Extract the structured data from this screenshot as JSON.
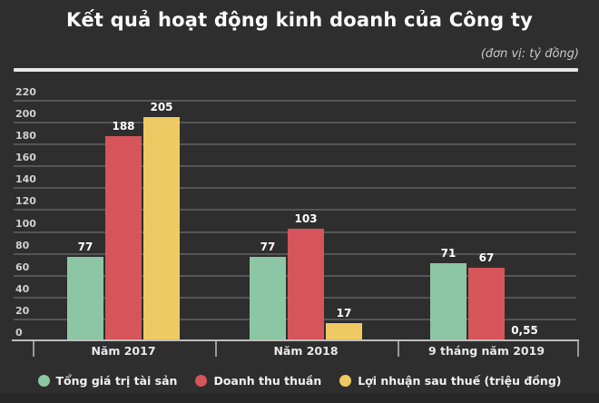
{
  "header": {
    "title": "Kết quả hoạt động kinh doanh của Công ty",
    "subtitle": "(đơn vị: tỷ đồng)"
  },
  "chart_data": {
    "type": "bar",
    "title": "Kết quả hoạt động kinh doanh của Công ty",
    "unit_note": "(đơn vị: tỷ đồng)",
    "categories": [
      "Năm 2017",
      "Năm 2018",
      "9 tháng năm 2019"
    ],
    "series": [
      {
        "name": "Tổng giá trị tài sản",
        "color": "#8dc6a4",
        "values": [
          77,
          77,
          71
        ],
        "value_labels": [
          "77",
          "77",
          "71"
        ]
      },
      {
        "name": "Doanh thu thuần",
        "color": "#d5555a",
        "values": [
          188,
          103,
          67
        ],
        "value_labels": [
          "188",
          "103",
          "67"
        ]
      },
      {
        "name": "Lợi nhuận sau thuế (triệu đồng)",
        "color": "#eec964",
        "values": [
          205,
          17,
          0.55
        ],
        "value_labels": [
          "205",
          "17",
          "0,55"
        ]
      }
    ],
    "y_axis": {
      "min": 0,
      "max": 220,
      "step": 20
    },
    "grid": true,
    "legend_position": "bottom"
  },
  "colors": {
    "background": "#2e2e2e",
    "gridline": "#555555",
    "axis_line": "#bdbdbd",
    "tick_label": "#d0d0d0",
    "category_label": "#e8e8e8",
    "data_label": "#ffffff",
    "header_divider": "#e6e6e6",
    "legend_text": "#f0f0f0"
  }
}
